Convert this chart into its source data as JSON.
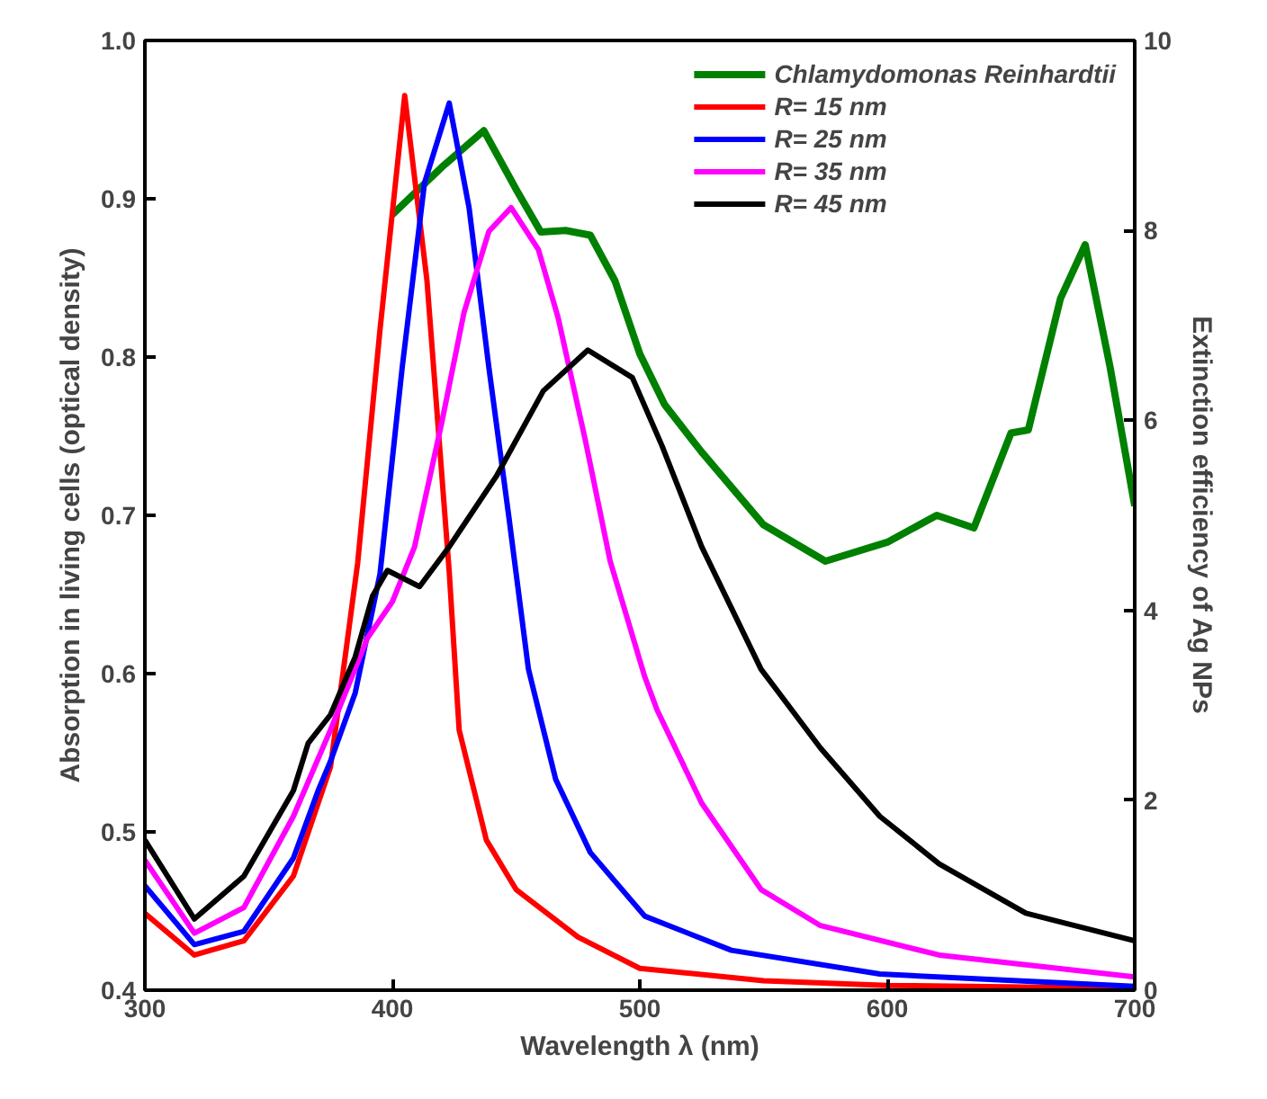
{
  "chart_data": {
    "type": "line",
    "xlabel": "Wavelength λ (nm)",
    "ylabel": "Absorption in living cells (optical density)",
    "y2label": "Extinction efficiency of Ag NPs",
    "xlim": [
      300,
      700
    ],
    "xticks": [
      300,
      400,
      500,
      600,
      700
    ],
    "ylim": [
      0.4,
      1.0
    ],
    "yticks": [
      0.4,
      0.5,
      0.6,
      0.7,
      0.8,
      0.9,
      {
        "value": 1,
        "label": "1.0"
      }
    ],
    "y2lim": [
      0,
      10
    ],
    "y2ticks": [
      0,
      2,
      4,
      6,
      8,
      10
    ],
    "grid": false,
    "legend": "top right",
    "series": [
      {
        "name": "Chlamydomonas Reinhardtii",
        "color": "#008000",
        "x": [
          400,
          420,
          437,
          450,
          460,
          470,
          480,
          490,
          500,
          510,
          525,
          550,
          575,
          600,
          620,
          635,
          650,
          657,
          670,
          680,
          690,
          700
        ],
        "values": [
          0.89,
          0.92,
          0.943,
          0.906,
          0.879,
          0.88,
          0.877,
          0.848,
          0.802,
          0.77,
          0.74,
          0.694,
          0.671,
          0.683,
          0.7,
          0.692,
          0.752,
          0.754,
          0.837,
          0.871,
          0.794,
          0.706
        ]
      },
      {
        "name": "R= 15 nm",
        "color": "#ff0000",
        "axis": "y2",
        "x": [
          300,
          320,
          340,
          360,
          375,
          386,
          395,
          405,
          414,
          423,
          427,
          438,
          450,
          475,
          500,
          550,
          600,
          700
        ],
        "values": [
          0.81,
          0.37,
          0.52,
          1.2,
          2.35,
          4.5,
          6.95,
          9.42,
          7.47,
          4.4,
          2.74,
          1.58,
          1.06,
          0.56,
          0.23,
          0.1,
          0.05,
          0.02
        ]
      },
      {
        "name": "R= 25 nm",
        "color": "#0000ff",
        "axis": "y2",
        "x": [
          300,
          320,
          340,
          360,
          370,
          375,
          385,
          395,
          404,
          413,
          423,
          431,
          439,
          447,
          455,
          466,
          480,
          502,
          537,
          597,
          700
        ],
        "values": [
          1.1,
          0.48,
          0.62,
          1.39,
          2.1,
          2.41,
          3.13,
          4.38,
          6.56,
          8.5,
          9.34,
          8.24,
          6.56,
          5.0,
          3.38,
          2.22,
          1.45,
          0.78,
          0.42,
          0.17,
          0.04
        ]
      },
      {
        "name": "R= 35 nm",
        "color": "#ff00ff",
        "axis": "y2",
        "x": [
          300,
          320,
          340,
          360,
          375,
          390,
          400,
          409,
          420,
          429,
          439,
          448,
          459,
          467,
          478,
          488,
          502,
          507,
          525,
          549,
          573,
          621,
          700
        ],
        "values": [
          1.37,
          0.6,
          0.87,
          1.83,
          2.74,
          3.71,
          4.09,
          4.67,
          5.98,
          7.14,
          7.99,
          8.24,
          7.8,
          7.08,
          5.79,
          4.52,
          3.3,
          2.95,
          1.97,
          1.06,
          0.68,
          0.37,
          0.14
        ]
      },
      {
        "name": "R= 45 nm",
        "color": "#000000",
        "axis": "y2",
        "x": [
          300,
          320,
          340,
          360,
          366,
          375,
          385,
          392,
          398,
          411,
          423,
          442,
          461,
          479,
          497,
          509,
          525,
          549,
          573,
          597,
          621,
          656,
          700
        ],
        "values": [
          1.58,
          0.75,
          1.2,
          2.1,
          2.6,
          2.9,
          3.51,
          4.15,
          4.42,
          4.25,
          4.67,
          5.41,
          6.31,
          6.74,
          6.45,
          5.73,
          4.67,
          3.38,
          2.55,
          1.83,
          1.33,
          0.81,
          0.52
        ]
      }
    ]
  }
}
